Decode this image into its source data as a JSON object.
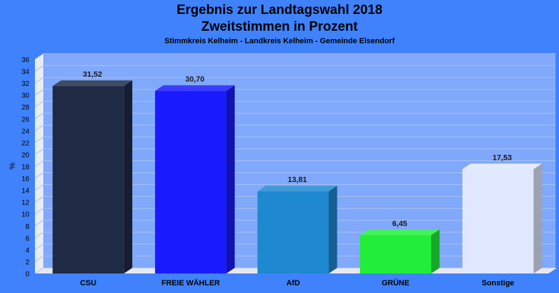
{
  "chart_data": {
    "type": "bar",
    "title": "Ergebnis zur Landtagswahl 2018",
    "subtitle": "Zweitstimmen in Prozent",
    "subsubtitle": "Stimmkreis Kelheim - Landkreis Kelheim - Gemeinde Elsendorf",
    "ylabel": "%",
    "xlabel": "",
    "ylim": [
      0,
      36
    ],
    "yticks": [
      0,
      2,
      4,
      6,
      8,
      10,
      12,
      14,
      16,
      18,
      20,
      22,
      24,
      26,
      28,
      30,
      32,
      34,
      36
    ],
    "grid": true,
    "categories": [
      "CSU",
      "FREIE WÄHLER",
      "AfD",
      "GRÜNE",
      "Sonstige"
    ],
    "values": [
      31.52,
      30.7,
      13.81,
      6.45,
      17.53
    ],
    "value_labels": [
      "31,52",
      "30,70",
      "13,81",
      "6,45",
      "17,53"
    ],
    "colors": [
      "#1f2a44",
      "#1a1aff",
      "#1e88d0",
      "#22ee3a",
      "#e0e8ff"
    ],
    "background_color": "#3f82fc"
  }
}
